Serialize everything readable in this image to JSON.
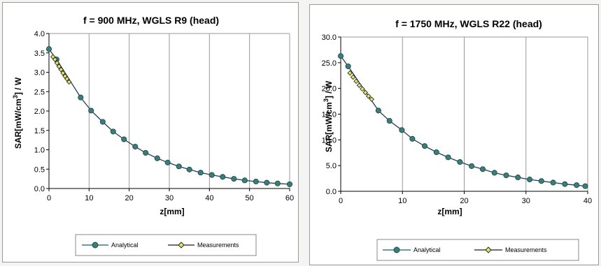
{
  "chart_data": [
    {
      "type": "line",
      "title": "f = 900 MHz, WGLS R9 (head)",
      "xlabel": "z[mm]",
      "ylabel_main": "SAR[mW/cm",
      "ylabel_sup": "3",
      "ylabel_tail": "] / W",
      "xlim": [
        0,
        60
      ],
      "ylim": [
        0,
        4
      ],
      "xticks": [
        "0",
        "10",
        "20",
        "30",
        "40",
        "50",
        "60"
      ],
      "yticks": [
        "0.0",
        "0.5",
        "1.0",
        "1.5",
        "2.0",
        "2.5",
        "3.0",
        "3.5",
        "4.0"
      ],
      "grid": "vertical",
      "legend_position": "bottom",
      "series": [
        {
          "name": "Analytical",
          "color": "#3a7d79",
          "marker": "circle",
          "x": [
            0.0,
            1.9,
            7.9,
            10.5,
            13.4,
            16.0,
            18.7,
            21.5,
            24.1,
            27.0,
            29.6,
            32.4,
            35.0,
            37.8,
            40.6,
            43.3,
            46.1,
            48.8,
            51.6,
            54.3,
            57.0,
            60.0
          ],
          "y": [
            3.6,
            3.33,
            2.35,
            2.01,
            1.72,
            1.47,
            1.27,
            1.08,
            0.92,
            0.78,
            0.67,
            0.57,
            0.49,
            0.41,
            0.35,
            0.3,
            0.25,
            0.21,
            0.18,
            0.15,
            0.13,
            0.11
          ]
        },
        {
          "name": "Measurements",
          "color": "#1a1a1a",
          "marker": "diamond",
          "marker_fill": "#e4e36a",
          "x": [
            1.0,
            1.5,
            2.0,
            2.5,
            3.0,
            3.5,
            4.0,
            4.5,
            5.0
          ],
          "y": [
            3.4,
            3.33,
            3.24,
            3.15,
            3.07,
            2.98,
            2.9,
            2.83,
            2.75
          ]
        }
      ]
    },
    {
      "type": "line",
      "title": "f = 1750 MHz, WGLS R22 (head)",
      "xlabel": "z[mm]",
      "ylabel_main": "SAR[mW/cm",
      "ylabel_sup": "3",
      "ylabel_tail": "] / W",
      "xlim": [
        0,
        40
      ],
      "ylim": [
        0,
        30
      ],
      "xticks": [
        "0",
        "10",
        "20",
        "30",
        "40"
      ],
      "yticks": [
        "0.0",
        "5.0",
        "10.0",
        "15.0",
        "20.0",
        "25.0",
        "30.0"
      ],
      "grid": "vertical",
      "legend_position": "bottom",
      "series": [
        {
          "name": "Analytical",
          "color": "#3a7d79",
          "marker": "circle",
          "x": [
            0.0,
            1.2,
            6.1,
            7.9,
            9.9,
            11.6,
            13.6,
            15.5,
            17.4,
            19.3,
            21.2,
            23.0,
            24.9,
            26.8,
            28.7,
            30.6,
            32.5,
            34.4,
            36.3,
            38.2,
            39.6
          ],
          "y": [
            26.3,
            24.3,
            15.7,
            13.7,
            11.9,
            10.2,
            8.8,
            7.6,
            6.6,
            5.7,
            4.9,
            4.3,
            3.6,
            3.1,
            2.7,
            2.3,
            2.0,
            1.7,
            1.4,
            1.2,
            1.0
          ]
        },
        {
          "name": "Measurements",
          "color": "#1a1a1a",
          "marker": "diamond",
          "marker_fill": "#e4e36a",
          "x": [
            1.5,
            2.0,
            2.5,
            3.0,
            3.5,
            4.0,
            4.5,
            5.0
          ],
          "y": [
            23.0,
            22.2,
            21.4,
            20.6,
            19.9,
            19.2,
            18.5,
            17.9
          ]
        }
      ]
    }
  ]
}
